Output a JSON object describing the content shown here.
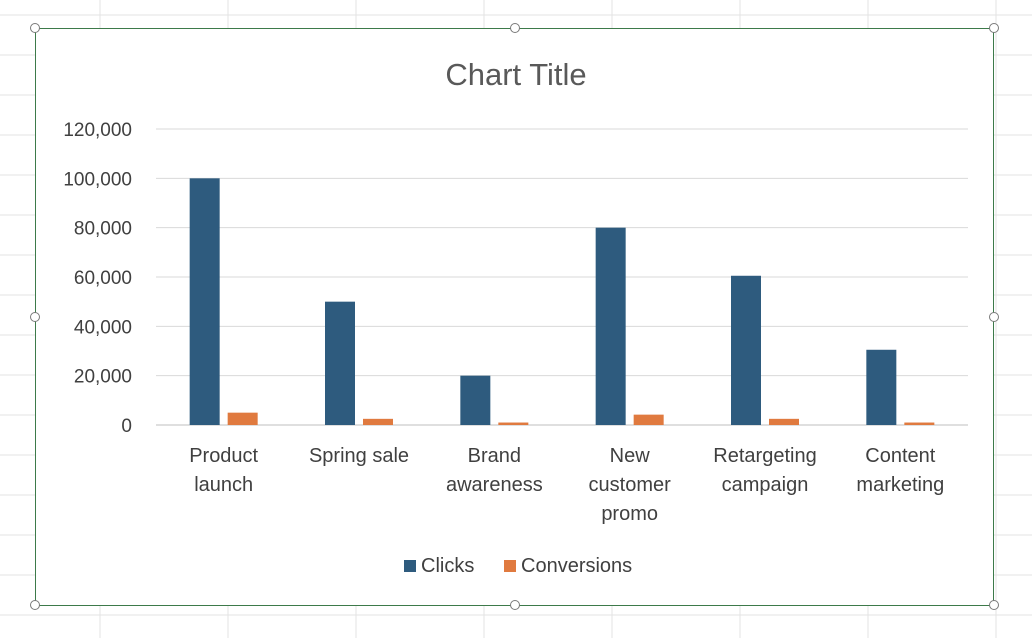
{
  "chart_data": {
    "type": "bar",
    "title": "Chart Title",
    "categories": [
      [
        "Product",
        "launch"
      ],
      [
        "Spring sale"
      ],
      [
        "Brand",
        "awareness"
      ],
      [
        "New",
        "customer",
        "promo"
      ],
      [
        "Retargeting",
        "campaign"
      ],
      [
        "Content",
        "marketing"
      ]
    ],
    "series": [
      {
        "name": "Clicks",
        "color": "#2e5b7e",
        "values": [
          100000,
          50000,
          20000,
          80000,
          60500,
          30500
        ]
      },
      {
        "name": "Conversions",
        "color": "#e07a3f",
        "values": [
          5000,
          2500,
          1000,
          4200,
          2500,
          1000
        ]
      }
    ],
    "ylim": [
      0,
      120000
    ],
    "yticks": [
      0,
      20000,
      40000,
      60000,
      80000,
      100000,
      120000
    ],
    "ytick_labels": [
      "0",
      "20,000",
      "40,000",
      "60,000",
      "80,000",
      "100,000",
      "120,000"
    ],
    "grid": true,
    "legend_position": "bottom"
  }
}
